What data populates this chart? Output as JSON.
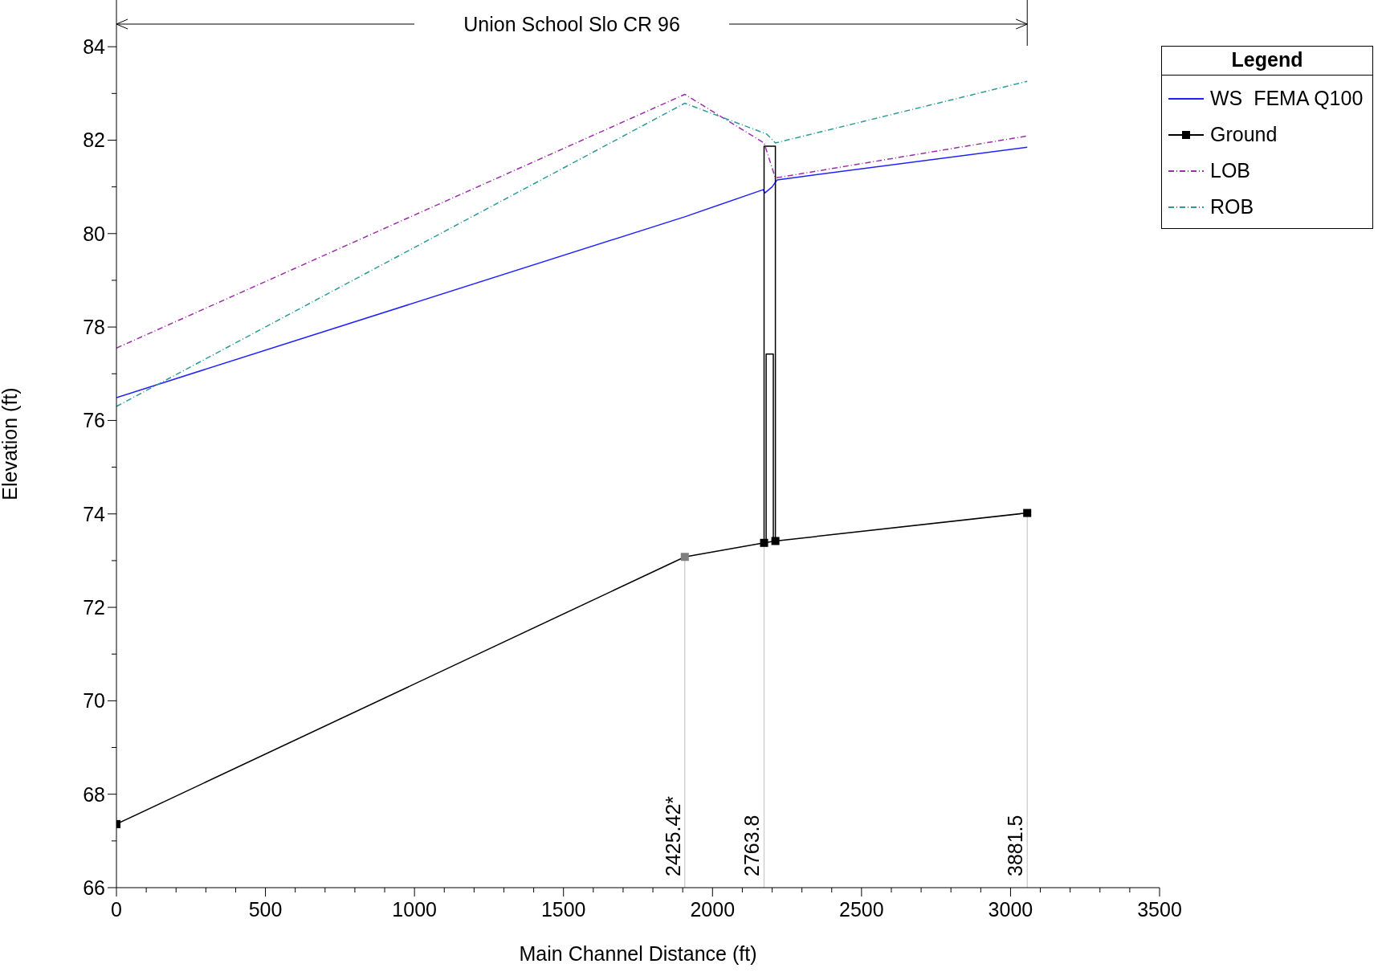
{
  "chart_data": {
    "type": "line",
    "xlabel": "Main Channel Distance (ft)",
    "ylabel": "Elevation (ft)",
    "legend_title": "Legend",
    "legend": "top right",
    "xlim": [
      0,
      3500
    ],
    "ylim": [
      66,
      85
    ],
    "xticks": [
      0,
      {
        "value": 100,
        "label": null
      },
      {
        "value": 200,
        "label": null
      },
      {
        "value": 300,
        "label": null
      },
      {
        "value": 400,
        "label": null
      },
      500,
      {
        "value": 600,
        "label": null
      },
      {
        "value": 700,
        "label": null
      },
      {
        "value": 800,
        "label": null
      },
      {
        "value": 900,
        "label": null
      },
      1000,
      {
        "value": 1100,
        "label": null
      },
      {
        "value": 1200,
        "label": null
      },
      {
        "value": 1300,
        "label": null
      },
      {
        "value": 1400,
        "label": null
      },
      1500,
      {
        "value": 1600,
        "label": null
      },
      {
        "value": 1700,
        "label": null
      },
      {
        "value": 1800,
        "label": null
      },
      {
        "value": 1900,
        "label": null
      },
      2000,
      {
        "value": 2100,
        "label": null
      },
      {
        "value": 2200,
        "label": null
      },
      {
        "value": 2300,
        "label": null
      },
      {
        "value": 2400,
        "label": null
      },
      2500,
      {
        "value": 2600,
        "label": null
      },
      {
        "value": 2700,
        "label": null
      },
      {
        "value": 2800,
        "label": null
      },
      {
        "value": 2900,
        "label": null
      },
      3000,
      {
        "value": 3100,
        "label": null
      },
      {
        "value": 3200,
        "label": null
      },
      {
        "value": 3300,
        "label": null
      },
      {
        "value": 3400,
        "label": null
      },
      3500
    ],
    "yticks": [
      66,
      {
        "value": 67,
        "label": null
      },
      68,
      {
        "value": 69,
        "label": null
      },
      70,
      {
        "value": 71,
        "label": null
      },
      72,
      {
        "value": 73,
        "label": null
      },
      74,
      {
        "value": 75,
        "label": null
      },
      76,
      {
        "value": 77,
        "label": null
      },
      78,
      {
        "value": 79,
        "label": null
      },
      80,
      {
        "value": 81,
        "label": null
      },
      82,
      {
        "value": 83,
        "label": null
      },
      84
    ],
    "series": [
      {
        "name": "WS  FEMA Q100",
        "color": "#2020ff",
        "line_style": "solid",
        "marker": "none",
        "x": [
          0,
          1907,
          2170,
          2176,
          2200,
          2217,
          3056
        ],
        "values": [
          76.49,
          80.36,
          80.94,
          80.87,
          81.0,
          81.15,
          81.85
        ]
      },
      {
        "name": "Ground",
        "color": "#000000",
        "line_style": "solid",
        "marker": "square",
        "colors": [
          "#000000",
          "#808080",
          "#000000",
          "#000000",
          "#000000"
        ],
        "x": [
          0,
          1907,
          2173,
          2211,
          3056
        ],
        "values": [
          67.36,
          73.08,
          73.38,
          73.42,
          74.02
        ]
      },
      {
        "name": "LOB",
        "color": "#9b2fa8",
        "line_style": "dashed",
        "marker": "none",
        "x": [
          0,
          1907,
          2173,
          2211,
          3056
        ],
        "values": [
          77.55,
          82.98,
          81.94,
          81.19,
          82.09
        ]
      },
      {
        "name": "ROB",
        "color": "#2f9a9a",
        "line_style": "dashed",
        "marker": "none",
        "x": [
          0,
          1907,
          2182,
          2211,
          3056
        ],
        "values": [
          76.3,
          82.79,
          82.13,
          81.94,
          83.26
        ]
      },
      {
        "color": "#000000",
        "line_style": "solid",
        "marker": "none",
        "x": [
          2173,
          2173,
          2211,
          2211
        ],
        "values": [
          73.38,
          81.87,
          81.87,
          73.42
        ]
      },
      {
        "color": "#000000",
        "line_style": "solid",
        "marker": "none",
        "x": [
          2180,
          2180,
          2204,
          2204
        ],
        "values": [
          73.4,
          77.42,
          77.42,
          73.42
        ]
      }
    ],
    "annotations": [
      "Union School Slo CR 96",
      {
        "text": "2425.42*",
        "x": 1907,
        "y": 73.08
      },
      {
        "text": "2763.8",
        "x": 2173,
        "y": 73.38
      },
      {
        "text": "3881.5",
        "x": 3056,
        "y": 74.02
      }
    ]
  }
}
